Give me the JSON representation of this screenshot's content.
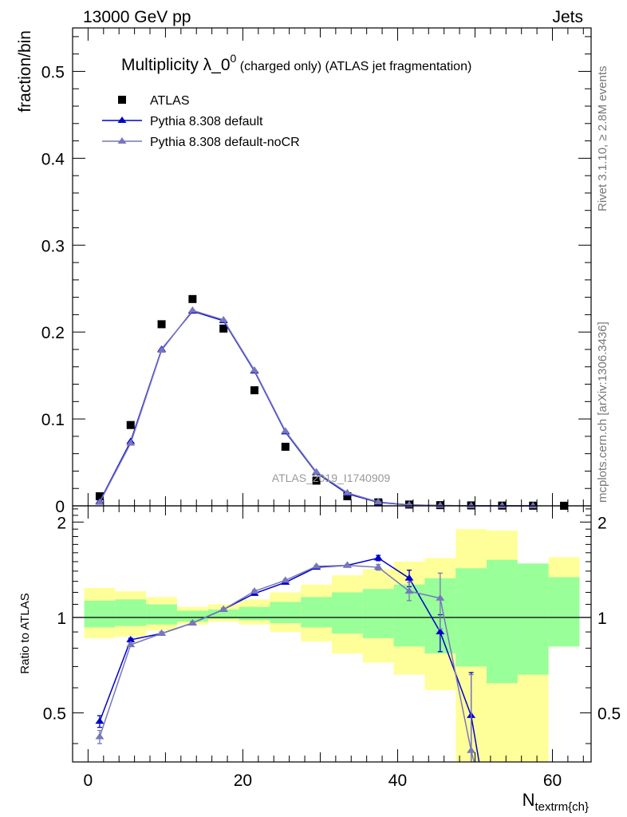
{
  "header": {
    "left": "13000 GeV pp",
    "right": "Jets"
  },
  "side": {
    "rivet": "Rivet 3.1.10, ≥ 2.8M events",
    "mcplots": "mcplots.cern.ch [arXiv:1306.3436]"
  },
  "watermark": "ATLAS_2019_I1740909",
  "chart_data": [
    {
      "type": "scatter",
      "title_main": "Multiplicity λ_0",
      "title_sup": "0",
      "title_rest": " (charged only) (ATLAS jet fragmentation)",
      "ylabel": "fraction/bin",
      "xlim": [
        -2,
        65
      ],
      "ylim": [
        0,
        0.55
      ],
      "yticks": [
        0,
        0.1,
        0.2,
        0.3,
        0.4,
        0.5
      ],
      "ytick_labels": [
        "0",
        "0.1",
        "0.2",
        "0.3",
        "0.4",
        "0.5"
      ],
      "legend": [
        "ATLAS",
        "Pythia 8.308 default",
        "Pythia 8.308 default-noCR"
      ],
      "series": [
        {
          "name": "ATLAS",
          "color": "#000000",
          "marker": "square",
          "x": [
            1.5,
            5.5,
            9.5,
            13.5,
            17.5,
            21.5,
            25.5,
            29.5,
            33.5,
            37.5,
            41.5,
            45.5,
            49.5,
            53.5,
            57.5,
            61.5
          ],
          "y": [
            0.011,
            0.093,
            0.209,
            0.238,
            0.204,
            0.133,
            0.068,
            0.029,
            0.011,
            0.004,
            0.0015,
            0.0008,
            0.0005,
            0.0003,
            0.0002,
            0.0001
          ]
        },
        {
          "name": "Pythia 8.308 default",
          "color": "#0000cc",
          "marker": "triangle",
          "x": [
            1.5,
            5.5,
            9.5,
            13.5,
            17.5,
            21.5,
            25.5,
            29.5,
            33.5,
            37.5,
            41.5,
            45.5,
            49.5,
            53.5,
            57.5
          ],
          "y": [
            0.005,
            0.074,
            0.18,
            0.224,
            0.213,
            0.155,
            0.085,
            0.038,
            0.014,
            0.004,
            0.001,
            0.0003,
            0.0001,
            3e-05,
            1e-05
          ]
        },
        {
          "name": "Pythia 8.308 default-noCR",
          "color": "#7777bb",
          "marker": "triangle",
          "x": [
            1.5,
            5.5,
            9.5,
            13.5,
            17.5,
            21.5,
            25.5,
            29.5,
            33.5,
            37.5,
            41.5,
            45.5,
            49.5,
            53.5,
            57.5
          ],
          "y": [
            0.004,
            0.072,
            0.179,
            0.225,
            0.214,
            0.156,
            0.086,
            0.039,
            0.015,
            0.0045,
            0.0012,
            0.0004,
            0.0001,
            3e-05,
            1e-05
          ]
        }
      ]
    },
    {
      "type": "scatter",
      "ylabel": "Ratio to ATLAS",
      "xlabel_main": "N",
      "xlabel_sub": "textrm{ch}",
      "xlim": [
        -2,
        65
      ],
      "ylim": [
        0.35,
        2.25
      ],
      "xticks": [
        0,
        20,
        40,
        60
      ],
      "xtick_labels": [
        "0",
        "20",
        "40",
        "60"
      ],
      "yticks": [
        0.5,
        1,
        2
      ],
      "ytick_labels": [
        "0.5",
        "1",
        "2"
      ],
      "bins": [
        -0.5,
        3.5,
        7.5,
        11.5,
        15.5,
        19.5,
        23.5,
        27.5,
        31.5,
        35.5,
        39.5,
        43.5,
        47.5,
        51.5,
        55.5,
        59.5,
        63.5
      ],
      "band_yellow": {
        "color": "#ffff99",
        "lo": [
          0.86,
          0.87,
          0.91,
          0.95,
          0.97,
          0.95,
          0.9,
          0.84,
          0.77,
          0.72,
          0.66,
          0.59,
          0.3,
          0.3,
          0.3,
          0.81
        ],
        "hi": [
          1.24,
          1.21,
          1.16,
          1.08,
          1.1,
          1.14,
          1.2,
          1.27,
          1.36,
          1.42,
          1.5,
          1.54,
          1.9,
          1.88,
          1.45,
          1.55
        ]
      },
      "band_green": {
        "color": "#99ff99",
        "lo": [
          0.93,
          0.94,
          0.95,
          0.97,
          0.99,
          0.98,
          0.96,
          0.93,
          0.89,
          0.86,
          0.81,
          0.77,
          0.7,
          0.62,
          0.66,
          0.81
        ],
        "hi": [
          1.13,
          1.14,
          1.1,
          1.05,
          1.06,
          1.08,
          1.12,
          1.16,
          1.2,
          1.23,
          1.27,
          1.33,
          1.43,
          1.52,
          1.48,
          1.34
        ]
      },
      "reference": 1,
      "series": [
        {
          "name": "Pythia 8.308 default",
          "color": "#0000cc",
          "x": [
            1.5,
            5.5,
            9.5,
            13.5,
            17.5,
            21.5,
            25.5,
            29.5,
            33.5,
            37.5,
            41.5,
            45.5,
            49.5,
            51.0
          ],
          "y": [
            0.47,
            0.85,
            0.89,
            0.96,
            1.06,
            1.19,
            1.29,
            1.44,
            1.46,
            1.54,
            1.33,
            0.9,
            0.49,
            0.3
          ],
          "err": [
            0.02,
            0.01,
            0.01,
            0.01,
            0.01,
            0.01,
            0.01,
            0.01,
            0.01,
            0.03,
            0.08,
            0.12,
            0.18,
            0
          ]
        },
        {
          "name": "Pythia 8.308 default-noCR",
          "color": "#7777bb",
          "x": [
            1.5,
            5.5,
            9.5,
            13.5,
            17.5,
            21.5,
            25.5,
            29.5,
            33.5,
            37.5,
            41.5,
            45.5,
            49.5,
            50.6
          ],
          "y": [
            0.42,
            0.82,
            0.89,
            0.96,
            1.06,
            1.21,
            1.31,
            1.45,
            1.46,
            1.44,
            1.21,
            1.15,
            0.38,
            0.3
          ],
          "err": [
            0.02,
            0.01,
            0.01,
            0.01,
            0.01,
            0.01,
            0.01,
            0.01,
            0.01,
            0.03,
            0.08,
            0.23,
            0.28,
            0
          ]
        }
      ]
    }
  ]
}
